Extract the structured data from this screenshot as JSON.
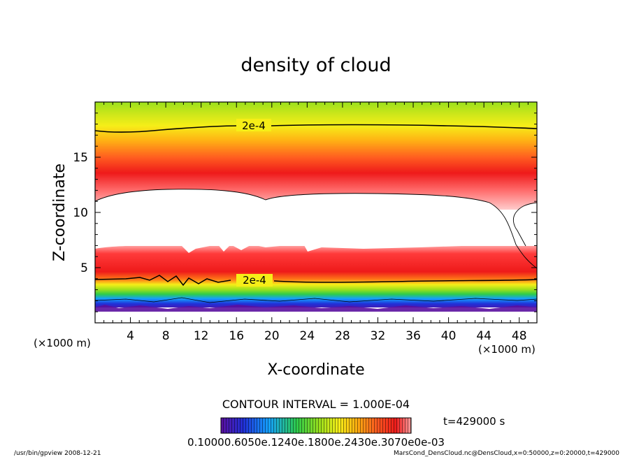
{
  "chart_data": {
    "type": "heatmap",
    "title": "density of cloud",
    "xlabel": "X-coordinate",
    "ylabel": "Z-coordinate",
    "x_unit": "(×1000 m)",
    "y_unit": "(×1000 m)",
    "xlim": [
      0,
      50
    ],
    "ylim": [
      0,
      20
    ],
    "x_ticks": [
      4,
      8,
      12,
      16,
      20,
      24,
      28,
      32,
      36,
      40,
      44,
      48
    ],
    "y_ticks": [
      5,
      10,
      15
    ],
    "contour_labels": [
      "2e-4",
      "2e-4"
    ],
    "contour_interval": "CONTOUR INTERVAL = 1.000E-04",
    "time_label": "t=429000 s",
    "colorbar_labels": "0.10000.6050e.1240e.1800e.2430e.3070e0e-03",
    "colormap": [
      "#5a0fa0",
      "#2030d8",
      "#14a0ff",
      "#2ecc4a",
      "#9be01c",
      "#f6ee18",
      "#ffaa10",
      "#ff5a20",
      "#ee1a1a",
      "#ff9f9f"
    ],
    "footer_left": "/usr/bin/gpview   2008-12-21",
    "footer_right": "MarsCond_DensCloud.nc@DensCloud,x=0:50000,z=0:20000,t=429000"
  }
}
